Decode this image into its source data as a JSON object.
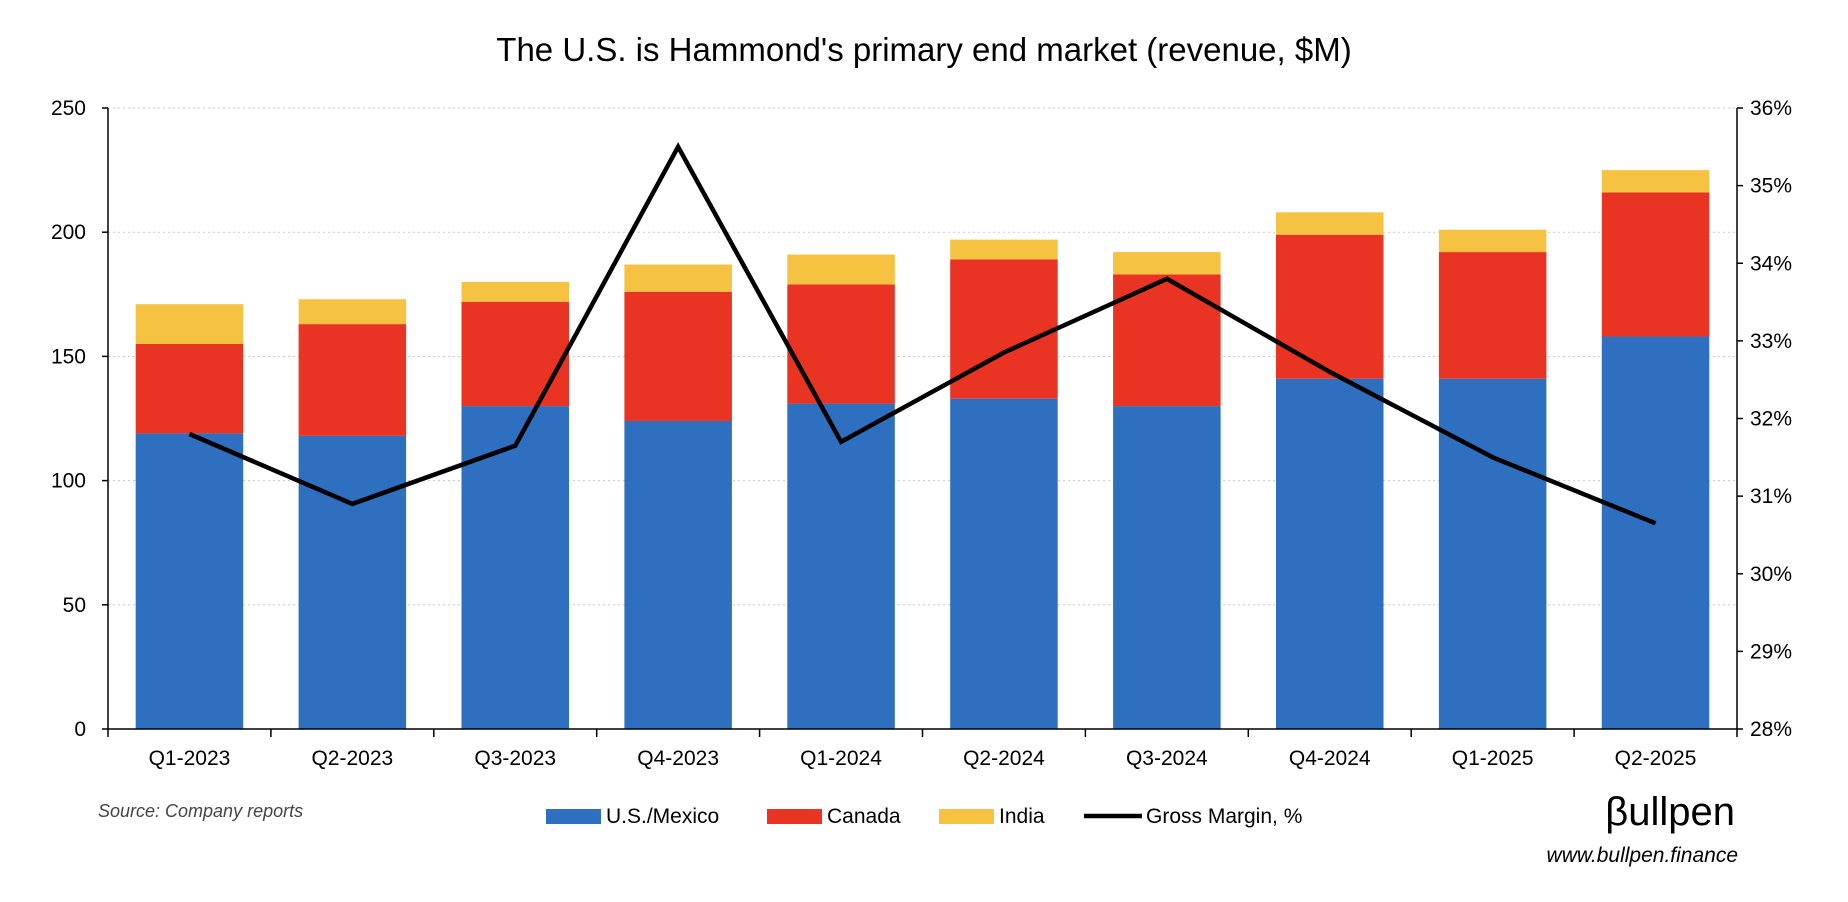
{
  "chart_data": {
    "type": "bar",
    "stacked": true,
    "title": "The U.S. is Hammond's primary end market (revenue, $M)",
    "categories": [
      "Q1-2023",
      "Q2-2023",
      "Q3-2023",
      "Q4-2023",
      "Q1-2024",
      "Q2-2024",
      "Q3-2024",
      "Q4-2024",
      "Q1-2025",
      "Q2-2025"
    ],
    "series": [
      {
        "name": "U.S./Mexico",
        "color": "#2f6fbf",
        "values": [
          119,
          118,
          130,
          124,
          131,
          133,
          130,
          141,
          141,
          158
        ]
      },
      {
        "name": "Canada",
        "color": "#e93323",
        "values": [
          36,
          45,
          42,
          52,
          48,
          56,
          53,
          58,
          51,
          58
        ]
      },
      {
        "name": "India",
        "color": "#f5c242",
        "values": [
          16,
          10,
          8,
          11,
          12,
          8,
          9,
          9,
          9,
          9
        ]
      }
    ],
    "line_series": {
      "name": "Gross Margin, %",
      "color": "#000000",
      "axis": "right",
      "values": [
        31.8,
        30.9,
        31.65,
        35.5,
        31.7,
        32.85,
        33.8,
        32.6,
        31.5,
        30.65
      ]
    },
    "ylim": [
      0,
      250
    ],
    "y_ticks": [
      "0",
      "50",
      "100",
      "150",
      "200",
      "250"
    ],
    "y_tick_values": [
      0,
      50,
      100,
      150,
      200,
      250
    ],
    "y2lim": [
      28,
      36
    ],
    "y2_ticks": [
      "28%",
      "29%",
      "30%",
      "31%",
      "32%",
      "33%",
      "34%",
      "35%",
      "36%"
    ],
    "y2_tick_values": [
      28,
      29,
      30,
      31,
      32,
      33,
      34,
      35,
      36
    ],
    "xlabel": "",
    "ylabel": "",
    "grid": true,
    "legend": "bottom-center"
  },
  "footer": {
    "source": "Source: Company reports",
    "brand_logo": "βullpen",
    "brand_url": "www.bullpen.finance"
  }
}
